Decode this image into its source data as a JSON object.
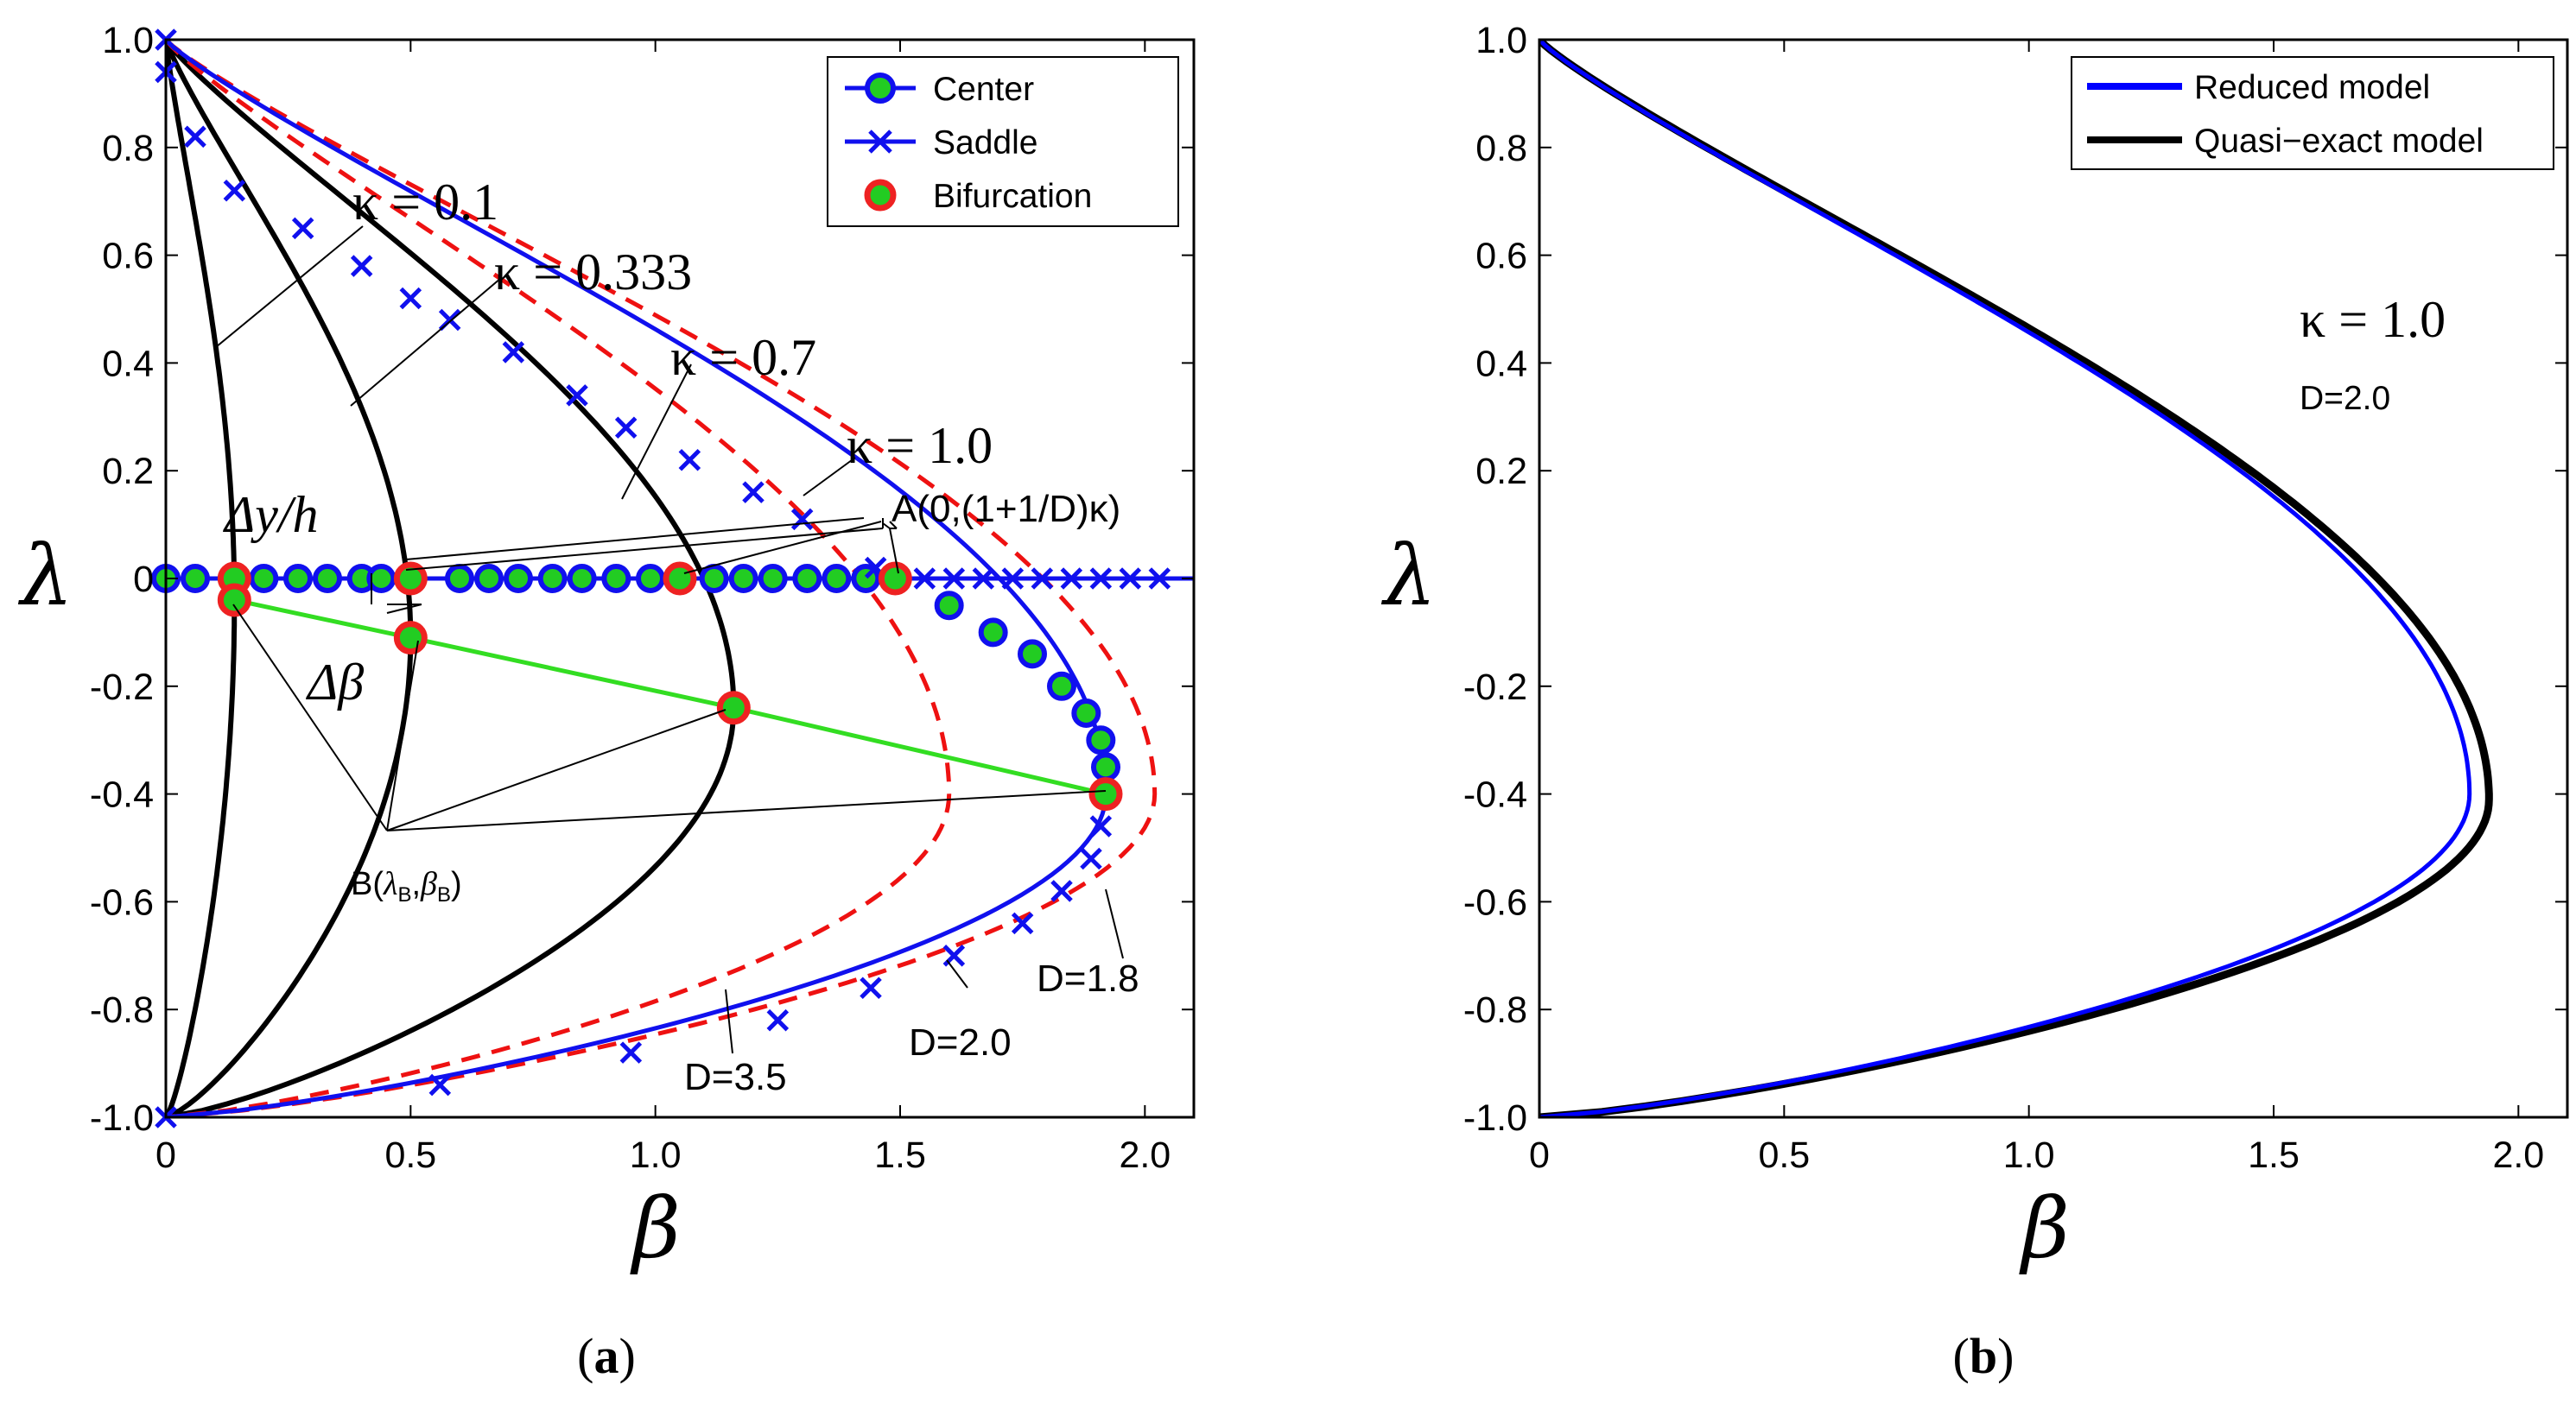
{
  "colors": {
    "center_line": "#1010ee",
    "center_fill": "#22cc22",
    "bif_edge": "#ee2222",
    "green_line": "#33dd22",
    "red_dash": "#ee1111",
    "black": "#000000",
    "reduced": "#0000ff"
  },
  "chart_data": [
    {
      "type": "line",
      "panel_label": "(a)",
      "caption_open": "(",
      "caption_letter": "a",
      "caption_close": ")",
      "xlabel": "β",
      "ylabel": "λ",
      "xlim": [
        0,
        2.1
      ],
      "ylim": [
        -1.0,
        1.0
      ],
      "xticks": [
        "0",
        "0.5",
        "1.0",
        "1.5",
        "2.0"
      ],
      "xtick_values": [
        0,
        0.5,
        1.0,
        1.5,
        2.0
      ],
      "yticks": [
        "1.0",
        "0.8",
        "0.6",
        "0.4",
        "0.2",
        "0",
        "-0.2",
        "-0.4",
        "-0.6",
        "-0.8",
        "-1.0"
      ],
      "ytick_values": [
        1.0,
        0.8,
        0.6,
        0.4,
        0.2,
        0,
        -0.2,
        -0.4,
        -0.6,
        -0.8,
        -1.0
      ],
      "legend": {
        "position": "top-right",
        "entries": [
          {
            "label": "Center",
            "style": "line-circle"
          },
          {
            "label": "Saddle",
            "style": "line-x"
          },
          {
            "label": "Bifurcation",
            "style": "circle"
          }
        ]
      },
      "kappa_curves": [
        {
          "kappa": 0.1,
          "label": "κ = 0.1",
          "bif": [
            0.14,
            -0.04
          ]
        },
        {
          "kappa": 0.333,
          "label": "κ = 0.333",
          "bif": [
            0.5,
            -0.11
          ]
        },
        {
          "kappa": 0.7,
          "label": "κ = 0.7",
          "bif": [
            1.16,
            -0.24
          ]
        },
        {
          "kappa": 1.0,
          "label": "κ = 1.0",
          "bif": [
            1.92,
            -0.4
          ]
        }
      ],
      "dashed_curves": [
        {
          "D": 3.5,
          "label": "D=3.5",
          "max_beta": 1.6
        },
        {
          "D": 1.8,
          "label": "D=1.8",
          "max_beta": 2.02
        }
      ],
      "solid_D_label": "D=2.0",
      "center_points_axis": [
        0.0,
        0.06,
        0.14,
        0.2,
        0.27,
        0.33,
        0.4,
        0.44,
        0.5,
        0.6,
        0.66,
        0.72,
        0.79,
        0.85,
        0.92,
        0.99,
        1.05,
        1.12,
        1.18,
        1.24,
        1.31,
        1.37,
        1.43,
        1.49
      ],
      "saddle_points_axis": [
        1.55,
        1.61,
        1.67,
        1.73,
        1.79,
        1.85,
        1.91,
        1.97,
        2.03
      ],
      "center_points_curve": [
        [
          1.6,
          -0.05
        ],
        [
          1.69,
          -0.1
        ],
        [
          1.77,
          -0.14
        ],
        [
          1.83,
          -0.2
        ],
        [
          1.88,
          -0.25
        ],
        [
          1.91,
          -0.3
        ],
        [
          1.92,
          -0.35
        ]
      ],
      "saddle_points_curve": [
        [
          0.0,
          1.0
        ],
        [
          0.0,
          0.94
        ],
        [
          0.06,
          0.82
        ],
        [
          0.14,
          0.72
        ],
        [
          0.28,
          0.65
        ],
        [
          0.4,
          0.58
        ],
        [
          0.5,
          0.52
        ],
        [
          0.58,
          0.48
        ],
        [
          0.71,
          0.42
        ],
        [
          0.84,
          0.34
        ],
        [
          0.94,
          0.28
        ],
        [
          1.07,
          0.22
        ],
        [
          1.2,
          0.16
        ],
        [
          1.3,
          0.11
        ],
        [
          1.45,
          0.02
        ],
        [
          1.91,
          -0.46
        ],
        [
          1.89,
          -0.52
        ],
        [
          1.83,
          -0.58
        ],
        [
          1.75,
          -0.64
        ],
        [
          1.61,
          -0.7
        ],
        [
          1.44,
          -0.76
        ],
        [
          1.25,
          -0.82
        ],
        [
          0.95,
          -0.88
        ],
        [
          0.56,
          -0.94
        ],
        [
          0.0,
          -1.0
        ]
      ],
      "bifurcation_points": [
        [
          0.14,
          0.0
        ],
        [
          0.5,
          0.0
        ],
        [
          1.05,
          0.0
        ],
        [
          1.49,
          0.0
        ],
        [
          0.14,
          -0.04
        ],
        [
          0.5,
          -0.11
        ],
        [
          1.16,
          -0.24
        ],
        [
          1.92,
          -0.4
        ]
      ],
      "annotations": {
        "dy_label": "Δy/h",
        "dbeta_label": "Δβ",
        "point_A": "A(0,(1+1/D)κ)",
        "point_B_prefix": "B(",
        "point_B_lam": "λ",
        "point_B_lam_sub": "B",
        "point_B_comma": ",",
        "point_B_beta": "β",
        "point_B_beta_sub": "B",
        "point_B_close": ")"
      }
    },
    {
      "type": "line",
      "panel_label": "(b)",
      "caption_open": "(",
      "caption_letter": "b",
      "caption_close": ")",
      "xlabel": "β",
      "ylabel": "λ",
      "xlim": [
        0,
        2.1
      ],
      "ylim": [
        -1.0,
        1.0
      ],
      "xticks": [
        "0",
        "0.5",
        "1.0",
        "1.5",
        "2.0"
      ],
      "xtick_values": [
        0,
        0.5,
        1.0,
        1.5,
        2.0
      ],
      "yticks": [
        "1.0",
        "0.8",
        "0.6",
        "0.4",
        "0.2",
        "-0.2",
        "-0.4",
        "-0.6",
        "-0.8",
        "-1.0"
      ],
      "ytick_values": [
        1.0,
        0.8,
        0.6,
        0.4,
        0.2,
        -0.2,
        -0.4,
        -0.6,
        -0.8,
        -1.0
      ],
      "legend": {
        "position": "top-right",
        "entries": [
          {
            "label": "Reduced model",
            "style": "blue-line"
          },
          {
            "label": "Quasi−exact model",
            "style": "black-line"
          }
        ]
      },
      "series": [
        {
          "name": "Reduced model",
          "max_beta": 1.9,
          "lambda_at_max": -0.4
        },
        {
          "name": "Quasi−exact model",
          "max_beta": 1.94,
          "lambda_at_max": -0.41
        }
      ],
      "annotation_kappa": "κ = 1.0",
      "annotation_D": "D=2.0"
    }
  ]
}
